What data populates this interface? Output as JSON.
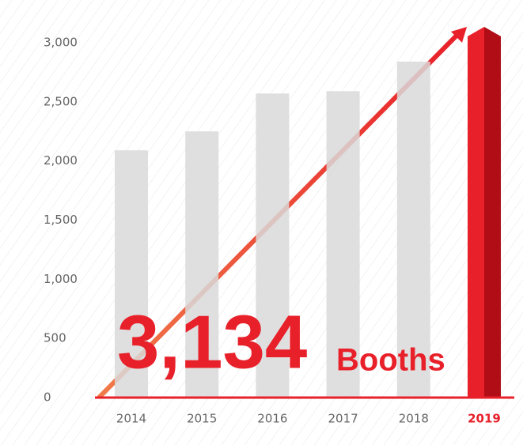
{
  "chart_data": {
    "type": "bar",
    "categories": [
      "2014",
      "2015",
      "2016",
      "2017",
      "2018",
      "2019"
    ],
    "values": [
      2090,
      2250,
      2570,
      2590,
      2840,
      3134
    ],
    "value_labels": [
      null,
      null,
      null,
      null,
      null,
      "3,134"
    ],
    "annotation": "Booths",
    "colors": [
      "#d9d9d9",
      "#d9d9d9",
      "#d9d9d9",
      "#d9d9d9",
      "#d9d9d9",
      "#e8202a"
    ],
    "highlight_color": "#e8202a",
    "ylim": [
      0,
      3000
    ],
    "yticks": [
      0,
      500,
      {
        "value": 1000,
        "label": "1,000"
      },
      {
        "value": 1500,
        "label": "1,500"
      },
      {
        "value": 2000,
        "label": "2,000"
      },
      {
        "value": 2500,
        "label": "2,500"
      },
      {
        "value": 3000,
        "label": "3,000"
      }
    ],
    "grid": false
  }
}
